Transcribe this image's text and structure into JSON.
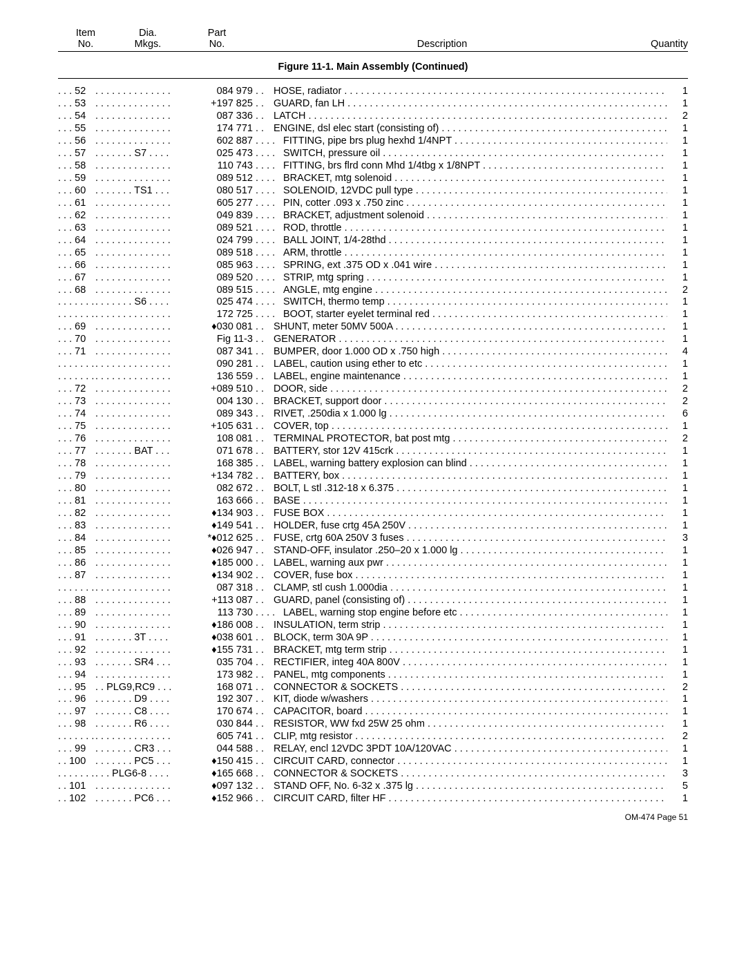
{
  "header": {
    "col1a": "Item",
    "col1b": "No.",
    "col2a": "Dia.",
    "col2b": "Mkgs.",
    "col3a": "Part",
    "col3b": "No.",
    "col4": "Description",
    "col5": "Quantity"
  },
  "figure_title": "Figure 11-1. Main Assembly (Continued)",
  "footer": "OM-474 Page 51",
  "rows": [
    {
      "item": "52",
      "dia": "",
      "part": "084 979",
      "sep": ". .",
      "ind": 0,
      "desc": "HOSE, radiator",
      "qty": "1"
    },
    {
      "item": "53",
      "dia": "",
      "part": "+197 825",
      "sep": ". .",
      "ind": 0,
      "desc": "GUARD, fan LH",
      "qty": "1"
    },
    {
      "item": "54",
      "dia": "",
      "part": "087 336",
      "sep": ". .",
      "ind": 0,
      "desc": "LATCH",
      "qty": "2"
    },
    {
      "item": "55",
      "dia": "",
      "part": "174 771",
      "sep": ". .",
      "ind": 0,
      "desc": "ENGINE, dsl elec start (consisting of)",
      "qty": "1"
    },
    {
      "item": "56",
      "dia": "",
      "part": "602 887",
      "sep": ". . . .",
      "ind": 1,
      "desc": "FITTING, pipe brs plug hexhd 1/4NPT",
      "qty": "1"
    },
    {
      "item": "57",
      "dia": "S7",
      "part": "025 473",
      "sep": ". . . .",
      "ind": 1,
      "desc": "SWITCH, pressure oil",
      "qty": "1"
    },
    {
      "item": "58",
      "dia": "",
      "part": "110 743",
      "sep": ". . . .",
      "ind": 1,
      "desc": "FITTING, brs flrd conn Mhd 1/4tbg x 1/8NPT",
      "qty": "1"
    },
    {
      "item": "59",
      "dia": "",
      "part": "089 512",
      "sep": ". . . .",
      "ind": 1,
      "desc": "BRACKET, mtg solenoid",
      "qty": "1"
    },
    {
      "item": "60",
      "dia": "TS1",
      "part": "080 517",
      "sep": ". . . .",
      "ind": 1,
      "desc": "SOLENOID, 12VDC pull type",
      "qty": "1"
    },
    {
      "item": "61",
      "dia": "",
      "part": "605 277",
      "sep": ". . . .",
      "ind": 1,
      "desc": "PIN, cotter .093 x .750 zinc",
      "qty": "1"
    },
    {
      "item": "62",
      "dia": "",
      "part": "049 839",
      "sep": ". . . .",
      "ind": 1,
      "desc": "BRACKET, adjustment solenoid",
      "qty": "1"
    },
    {
      "item": "63",
      "dia": "",
      "part": "089 521",
      "sep": ". . . .",
      "ind": 1,
      "desc": "ROD, throttle",
      "qty": "1"
    },
    {
      "item": "64",
      "dia": "",
      "part": "024 799",
      "sep": ". . . .",
      "ind": 1,
      "desc": "BALL JOINT, 1/4-28thd",
      "qty": "1"
    },
    {
      "item": "65",
      "dia": "",
      "part": "089 518",
      "sep": ". . . .",
      "ind": 1,
      "desc": "ARM, throttle",
      "qty": "1"
    },
    {
      "item": "66",
      "dia": "",
      "part": "085 963",
      "sep": ". . . .",
      "ind": 1,
      "desc": "SPRING, ext .375 OD x .041 wire",
      "qty": "1"
    },
    {
      "item": "67",
      "dia": "",
      "part": "089 520",
      "sep": ". . . .",
      "ind": 1,
      "desc": "STRIP, mtg spring",
      "qty": "1"
    },
    {
      "item": "68",
      "dia": "",
      "part": "089 515",
      "sep": ". . . .",
      "ind": 1,
      "desc": "ANGLE, mtg engine",
      "qty": "2"
    },
    {
      "item": "",
      "dia": "S6",
      "part": "025 474",
      "sep": ". . . .",
      "ind": 1,
      "desc": "SWITCH, thermo temp",
      "qty": "1"
    },
    {
      "item": "",
      "dia": "",
      "part": "172 725",
      "sep": ". . . .",
      "ind": 1,
      "desc": "BOOT, starter eyelet terminal red",
      "qty": "1"
    },
    {
      "item": "69",
      "dia": "",
      "part": "♦030 081",
      "sep": ". .",
      "ind": 0,
      "desc": "SHUNT, meter 50MV 500A",
      "qty": "1"
    },
    {
      "item": "70",
      "dia": "",
      "part": "Fig 11-3",
      "sep": ". .",
      "ind": 0,
      "desc": "GENERATOR",
      "qty": "1"
    },
    {
      "item": "71",
      "dia": "",
      "part": "087 341",
      "sep": ". .",
      "ind": 0,
      "desc": "BUMPER, door 1.000 OD x .750 high",
      "qty": "4"
    },
    {
      "item": "",
      "dia": "",
      "part": "090 281",
      "sep": ". .",
      "ind": 0,
      "desc": "LABEL, caution using ether to etc",
      "qty": "1"
    },
    {
      "item": "",
      "dia": "",
      "part": "136 559",
      "sep": ". .",
      "ind": 0,
      "desc": "LABEL, engine maintenance",
      "qty": "1"
    },
    {
      "item": "72",
      "dia": "",
      "part": "+089 510",
      "sep": ". .",
      "ind": 0,
      "desc": "DOOR, side",
      "qty": "2"
    },
    {
      "item": "73",
      "dia": "",
      "part": "004 130",
      "sep": ". .",
      "ind": 0,
      "desc": "BRACKET, support door",
      "qty": "2"
    },
    {
      "item": "74",
      "dia": "",
      "part": "089 343",
      "sep": ". .",
      "ind": 0,
      "desc": "RIVET, .250dia x 1.000 lg",
      "qty": "6"
    },
    {
      "item": "75",
      "dia": "",
      "part": "+105 631",
      "sep": ". .",
      "ind": 0,
      "desc": "COVER, top",
      "qty": "1"
    },
    {
      "item": "76",
      "dia": "",
      "part": "108 081",
      "sep": ". .",
      "ind": 0,
      "desc": "TERMINAL PROTECTOR, bat post mtg",
      "qty": "2"
    },
    {
      "item": "77",
      "dia": "BAT",
      "part": "071 678",
      "sep": ". .",
      "ind": 0,
      "desc": "BATTERY, stor 12V 415crk",
      "qty": "1"
    },
    {
      "item": "78",
      "dia": "",
      "part": "168 385",
      "sep": ". .",
      "ind": 0,
      "desc": "LABEL, warning battery explosion can blind",
      "qty": "1"
    },
    {
      "item": "79",
      "dia": "",
      "part": "+134 782",
      "sep": ". .",
      "ind": 0,
      "desc": "BATTERY, box",
      "qty": "1"
    },
    {
      "item": "80",
      "dia": "",
      "part": "082 672",
      "sep": ". .",
      "ind": 0,
      "desc": "BOLT, L stl .312-18 x 6.375",
      "qty": "1"
    },
    {
      "item": "81",
      "dia": "",
      "part": "163 666",
      "sep": ". .",
      "ind": 0,
      "desc": "BASE",
      "qty": "1"
    },
    {
      "item": "82",
      "dia": "",
      "part": "♦134 903",
      "sep": ". .",
      "ind": 0,
      "desc": "FUSE BOX",
      "qty": "1"
    },
    {
      "item": "83",
      "dia": "",
      "part": "♦149 541",
      "sep": ". .",
      "ind": 0,
      "desc": "HOLDER, fuse crtg 45A 250V",
      "qty": "1"
    },
    {
      "item": "84",
      "dia": "",
      "part": "*♦012 625",
      "sep": ". .",
      "ind": 0,
      "desc": "FUSE, crtg 60A 250V 3 fuses",
      "qty": "3"
    },
    {
      "item": "85",
      "dia": "",
      "part": "♦026 947",
      "sep": ". .",
      "ind": 0,
      "desc": "STAND-OFF, insulator .250–20 x 1.000 lg",
      "qty": "1"
    },
    {
      "item": "86",
      "dia": "",
      "part": "♦185 000",
      "sep": ". .",
      "ind": 0,
      "desc": "LABEL, warning aux pwr",
      "qty": "1"
    },
    {
      "item": "87",
      "dia": "",
      "part": "♦134 902",
      "sep": ". .",
      "ind": 0,
      "desc": "COVER, fuse box",
      "qty": "1"
    },
    {
      "item": "",
      "dia": "",
      "part": "087 318",
      "sep": ". .",
      "ind": 0,
      "desc": "CLAMP, stl cush 1.000dia",
      "qty": "1"
    },
    {
      "item": "88",
      "dia": "",
      "part": "+113 087",
      "sep": ". .",
      "ind": 0,
      "desc": "GUARD, panel (consisting of)",
      "qty": "1"
    },
    {
      "item": "89",
      "dia": "",
      "part": "113 730",
      "sep": ". . . .",
      "ind": 1,
      "desc": "LABEL, warning stop engine before etc",
      "qty": "1"
    },
    {
      "item": "90",
      "dia": "",
      "part": "♦186 008",
      "sep": ". .",
      "ind": 0,
      "desc": "INSULATION, term strip",
      "qty": "1"
    },
    {
      "item": "91",
      "dia": "3T",
      "part": "♦038 601",
      "sep": ". .",
      "ind": 0,
      "desc": "BLOCK, term 30A 9P",
      "qty": "1"
    },
    {
      "item": "92",
      "dia": "",
      "part": "♦155 731",
      "sep": ". .",
      "ind": 0,
      "desc": "BRACKET, mtg term strip",
      "qty": "1"
    },
    {
      "item": "93",
      "dia": "SR4",
      "part": "035 704",
      "sep": ". .",
      "ind": 0,
      "desc": "RECTIFIER, integ 40A 800V",
      "qty": "1"
    },
    {
      "item": "94",
      "dia": "",
      "part": "173 982",
      "sep": ". .",
      "ind": 0,
      "desc": "PANEL, mtg components",
      "qty": "1"
    },
    {
      "item": "95",
      "dia": "PLG9,RC9",
      "part": "168 071",
      "sep": ". .",
      "ind": 0,
      "desc": "CONNECTOR & SOCKETS",
      "qty": "2"
    },
    {
      "item": "96",
      "dia": "D9",
      "part": "192 307",
      "sep": ". .",
      "ind": 0,
      "desc": "KIT, diode w/washers",
      "qty": "1"
    },
    {
      "item": "97",
      "dia": "C8",
      "part": "170 674",
      "sep": ". .",
      "ind": 0,
      "desc": "CAPACITOR, board",
      "qty": "1"
    },
    {
      "item": "98",
      "dia": "R6",
      "part": "030 844",
      "sep": ". .",
      "ind": 0,
      "desc": "RESISTOR, WW fxd 25W 25 ohm",
      "qty": "1"
    },
    {
      "item": "",
      "dia": "",
      "part": "605 741",
      "sep": ". .",
      "ind": 0,
      "desc": "CLIP, mtg resistor",
      "qty": "2"
    },
    {
      "item": "99",
      "dia": "CR3",
      "part": "044 588",
      "sep": ". .",
      "ind": 0,
      "desc": "RELAY, encl 12VDC 3PDT 10A/120VAC",
      "qty": "1"
    },
    {
      "item": "100",
      "dia": "PC5",
      "part": "♦150 415",
      "sep": ". .",
      "ind": 0,
      "desc": "CIRCUIT CARD, connector",
      "qty": "1"
    },
    {
      "item": "",
      "dia": "PLG6-8",
      "part": "♦165 668",
      "sep": ". .",
      "ind": 0,
      "desc": "CONNECTOR & SOCKETS",
      "qty": "3"
    },
    {
      "item": "101",
      "dia": "",
      "part": "♦097 132",
      "sep": ". .",
      "ind": 0,
      "desc": "STAND OFF, No. 6-32 x .375 lg",
      "qty": "5"
    },
    {
      "item": "102",
      "dia": "PC6",
      "part": "♦152 966",
      "sep": ". .",
      "ind": 0,
      "desc": "CIRCUIT CARD, filter HF",
      "qty": "1"
    }
  ]
}
